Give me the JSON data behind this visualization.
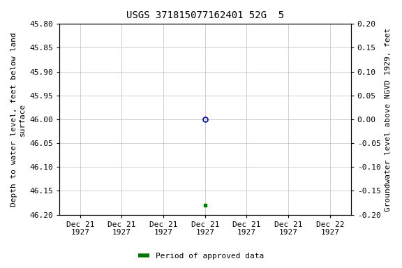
{
  "title": "USGS 371815077162401 52G  5",
  "ylabel_left": "Depth to water level, feet below land\nsurface",
  "ylabel_right": "Groundwater level above NGVD 1929, feet",
  "ylim_left": [
    46.2,
    45.8
  ],
  "ylim_right": [
    -0.2,
    0.2
  ],
  "yticks_left": [
    45.8,
    45.85,
    45.9,
    45.95,
    46.0,
    46.05,
    46.1,
    46.15,
    46.2
  ],
  "yticks_right": [
    0.2,
    0.15,
    0.1,
    0.05,
    0.0,
    -0.05,
    -0.1,
    -0.15,
    -0.2
  ],
  "blue_point_x": 3,
  "blue_point_y": 46.0,
  "green_point_x": 3,
  "green_point_y": 46.18,
  "xtick_labels": [
    "Dec 21\n1927",
    "Dec 21\n1927",
    "Dec 21\n1927",
    "Dec 21\n1927",
    "Dec 21\n1927",
    "Dec 21\n1927",
    "Dec 22\n1927"
  ],
  "xtick_positions": [
    0,
    1,
    2,
    3,
    4,
    5,
    6
  ],
  "xlim": [
    -0.5,
    6.5
  ],
  "background_color": "#ffffff",
  "grid_color": "#c8c8c8",
  "title_fontsize": 10,
  "axis_label_fontsize": 8,
  "tick_fontsize": 8,
  "legend_label": "Period of approved data",
  "blue_color": "#0000bb",
  "green_color": "#007700"
}
